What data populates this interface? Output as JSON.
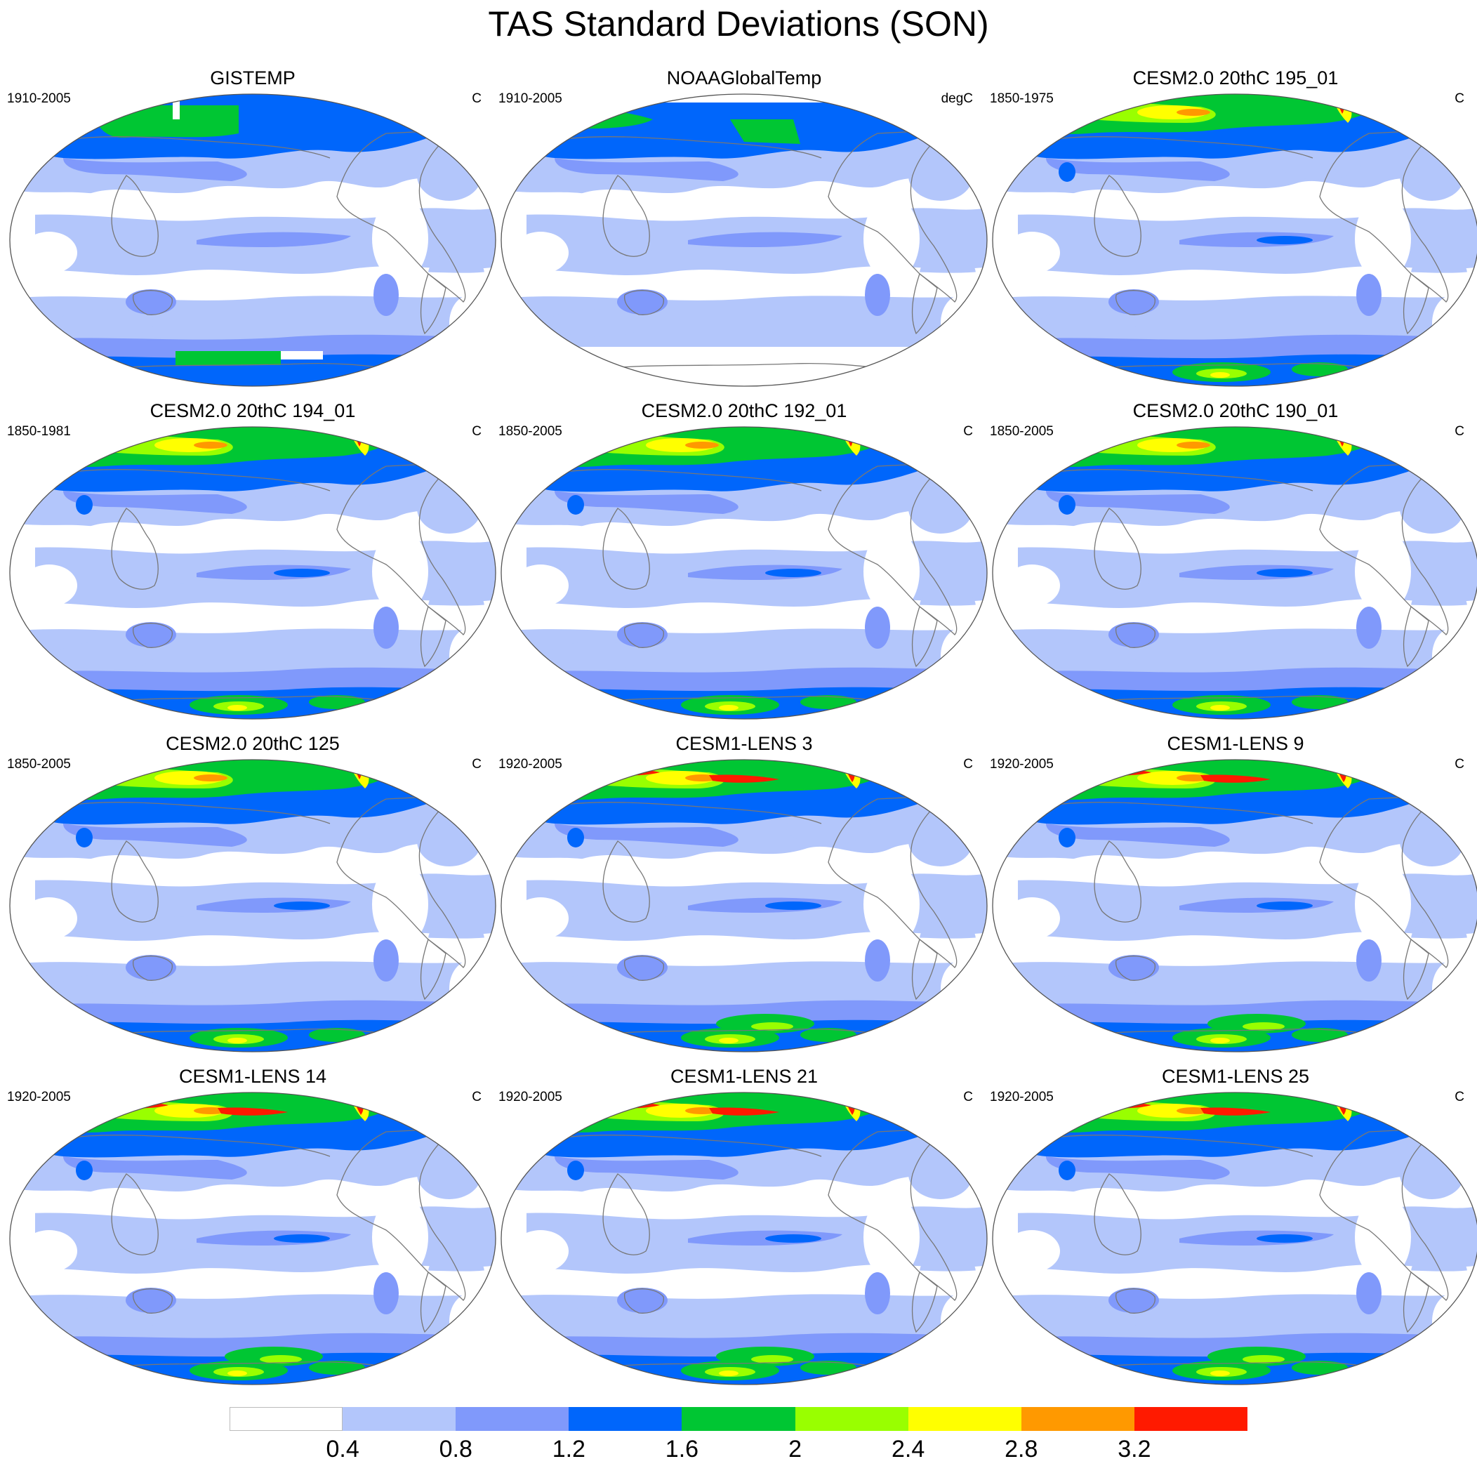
{
  "title": "TAS Standard Deviations (SON)",
  "colorscale": {
    "labels": [
      "0.4",
      "0.8",
      "1.2",
      "1.6",
      "2",
      "2.4",
      "2.8",
      "3.2"
    ],
    "colors": [
      "#ffffff",
      "#b3c6fb",
      "#8099fb",
      "#0066fb",
      "#00c633",
      "#99ff00",
      "#ffff00",
      "#ff9900",
      "#ff1a00"
    ]
  },
  "panels": [
    {
      "title": "GISTEMP",
      "period": "1910-2005",
      "units": "C",
      "variant": "obs-gis"
    },
    {
      "title": "NOAAGlobalTemp",
      "period": "1910-2005",
      "units": "degC",
      "variant": "obs-noaa"
    },
    {
      "title": "CESM2.0 20thC 195_01",
      "period": "1850-1975",
      "units": "C",
      "variant": "cesm2"
    },
    {
      "title": "CESM2.0 20thC 194_01",
      "period": "1850-1981",
      "units": "C",
      "variant": "cesm2"
    },
    {
      "title": "CESM2.0 20thC 192_01",
      "period": "1850-2005",
      "units": "C",
      "variant": "cesm2"
    },
    {
      "title": "CESM2.0 20thC 190_01",
      "period": "1850-2005",
      "units": "C",
      "variant": "cesm2"
    },
    {
      "title": "CESM2.0 20thC 125",
      "period": "1850-2005",
      "units": "C",
      "variant": "cesm2"
    },
    {
      "title": "CESM1-LENS 3",
      "period": "1920-2005",
      "units": "C",
      "variant": "lens"
    },
    {
      "title": "CESM1-LENS 9",
      "period": "1920-2005",
      "units": "C",
      "variant": "lens"
    },
    {
      "title": "CESM1-LENS 14",
      "period": "1920-2005",
      "units": "C",
      "variant": "lens"
    },
    {
      "title": "CESM1-LENS 21",
      "period": "1920-2005",
      "units": "C",
      "variant": "lens"
    },
    {
      "title": "CESM1-LENS 25",
      "period": "1920-2005",
      "units": "C",
      "variant": "lens"
    }
  ]
}
